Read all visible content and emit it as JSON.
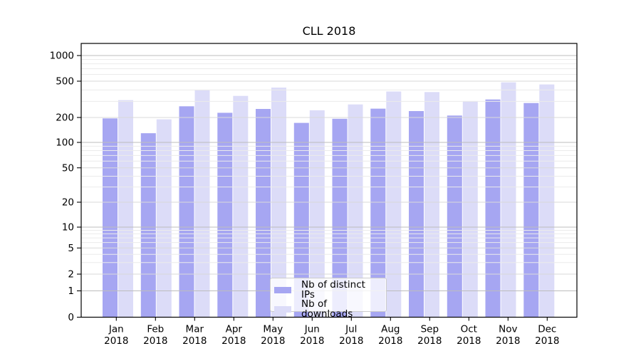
{
  "chart_data": {
    "type": "bar",
    "title": "CLL 2018",
    "categories": [
      "Jan",
      "Feb",
      "Mar",
      "Apr",
      "May",
      "Jun",
      "Jul",
      "Aug",
      "Sep",
      "Oct",
      "Nov",
      "Dec"
    ],
    "x_tick_year": "2018",
    "series": [
      {
        "name": "Nb of distinct IPs",
        "color": "#a6a6f2",
        "values": [
          195,
          129,
          265,
          225,
          248,
          172,
          193,
          250,
          235,
          210,
          315,
          288
        ]
      },
      {
        "name": "Nb of downloads",
        "color": "#dcdcf8",
        "values": [
          310,
          190,
          400,
          345,
          425,
          240,
          278,
          385,
          380,
          303,
          485,
          460
        ]
      }
    ],
    "yticks": [
      0,
      1,
      2,
      5,
      10,
      20,
      50,
      100,
      200,
      500,
      1000
    ],
    "y_scale": "symlog",
    "ylim": [
      0,
      1300
    ],
    "grid": true,
    "legend_position": "lower-center"
  }
}
